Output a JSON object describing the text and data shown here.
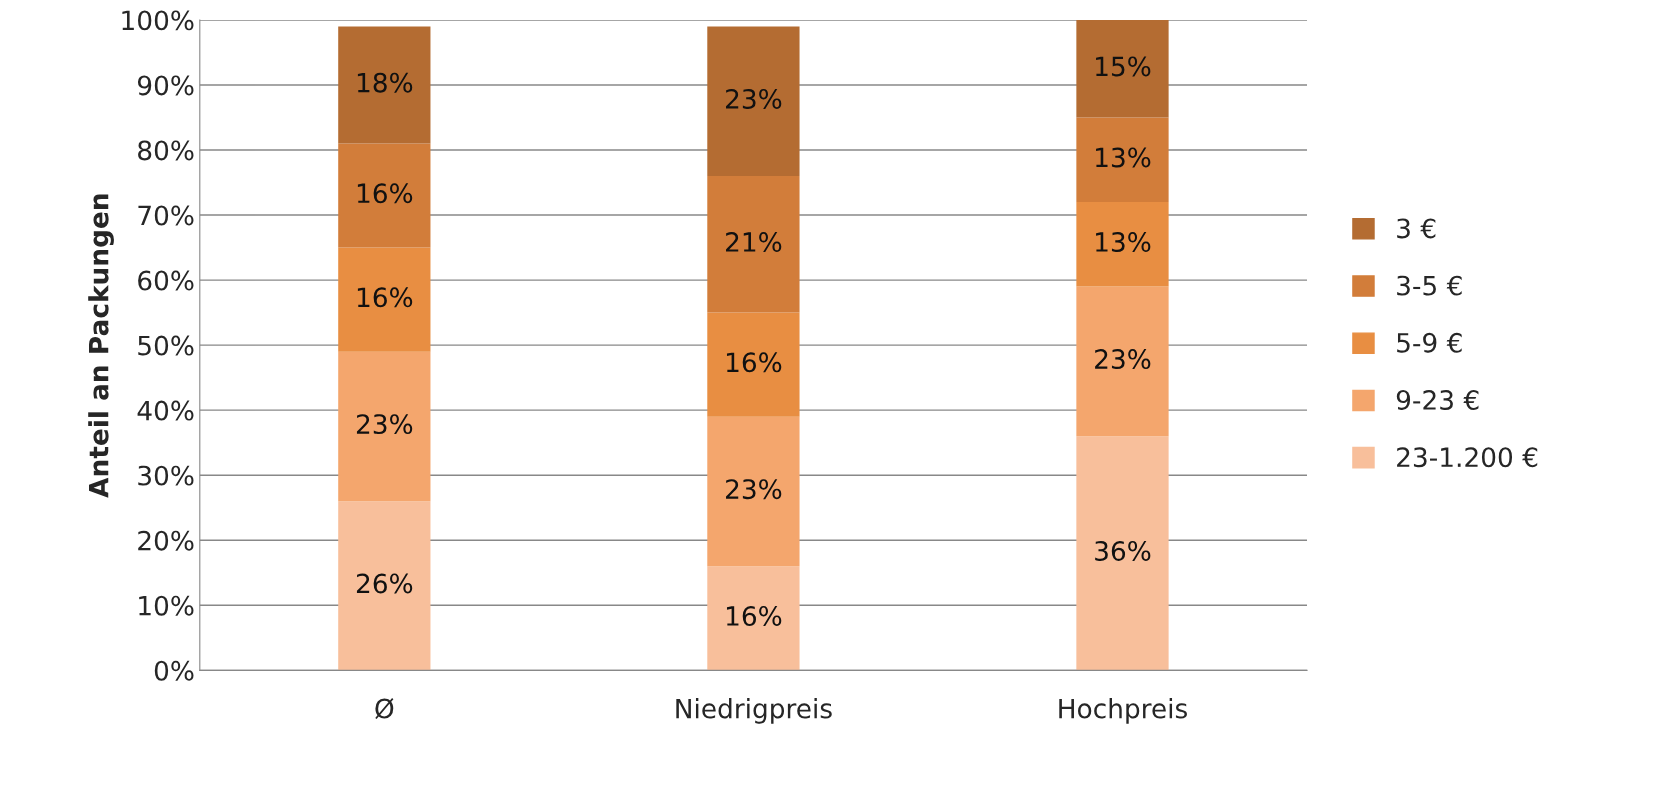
{
  "chart_data": {
    "type": "bar",
    "stacked": true,
    "ylabel": "Anteil an Packungen",
    "categories": [
      "Ø",
      "Niedrigpreis",
      "Hochpreis"
    ],
    "series": [
      {
        "name": "23-1.200 €",
        "color": "#f8bf9b",
        "values": [
          26,
          16,
          36
        ],
        "value_labels": [
          "26%",
          "16%",
          "36%"
        ]
      },
      {
        "name": "9-23 €",
        "color": "#f4a66d",
        "values": [
          23,
          23,
          23
        ],
        "value_labels": [
          "23%",
          "23%",
          "23%"
        ]
      },
      {
        "name": "5-9 €",
        "color": "#e88e42",
        "values": [
          16,
          16,
          13
        ],
        "value_labels": [
          "16%",
          "16%",
          "13%"
        ]
      },
      {
        "name": "3-5 €",
        "color": "#d27d3a",
        "values": [
          16,
          21,
          13
        ],
        "value_labels": [
          "16%",
          "21%",
          "13%"
        ]
      },
      {
        "name": "3 €",
        "color": "#b46c32",
        "values": [
          18,
          23,
          15
        ],
        "value_labels": [
          "18%",
          "23%",
          "15%"
        ]
      }
    ],
    "ylim": [
      0,
      100
    ],
    "yticks": [
      {
        "value": 0,
        "label": "0%"
      },
      {
        "value": 10,
        "label": "10%"
      },
      {
        "value": 20,
        "label": "20%"
      },
      {
        "value": 30,
        "label": "30%"
      },
      {
        "value": 40,
        "label": "40%"
      },
      {
        "value": 50,
        "label": "50%"
      },
      {
        "value": 60,
        "label": "60%"
      },
      {
        "value": 70,
        "label": "70%"
      },
      {
        "value": 80,
        "label": "80%"
      },
      {
        "value": 90,
        "label": "90%"
      },
      {
        "value": 100,
        "label": "100%"
      }
    ],
    "grid": "y",
    "legend": "right"
  }
}
